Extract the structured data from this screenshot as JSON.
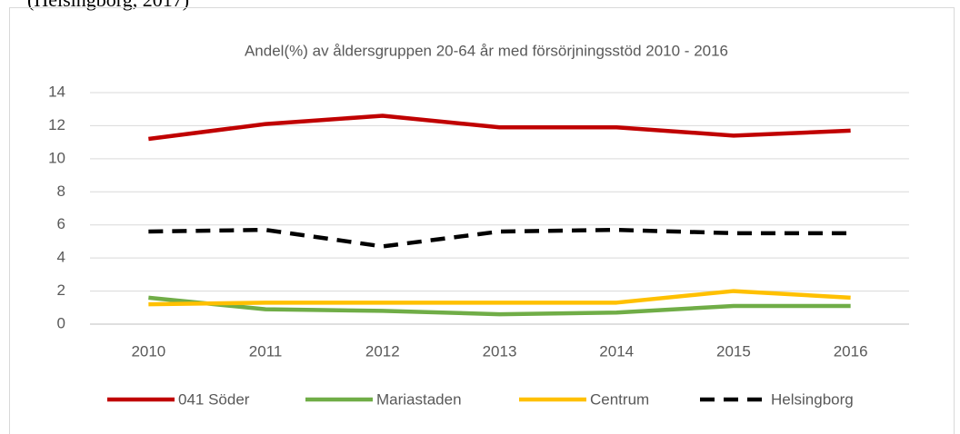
{
  "caption": "(Helsingborg, 2017)",
  "chart_data": {
    "type": "line",
    "title": "Andel(%) av åldersgruppen 20-64 år med försörjningsstöd 2010 - 2016",
    "categories": [
      "2010",
      "2011",
      "2012",
      "2013",
      "2014",
      "2015",
      "2016"
    ],
    "series": [
      {
        "name": "041 Söder",
        "color": "#c00000",
        "dashed": false,
        "values": [
          11.2,
          12.1,
          12.6,
          11.9,
          11.9,
          11.4,
          11.7
        ]
      },
      {
        "name": "Mariastaden",
        "color": "#70ad47",
        "dashed": false,
        "values": [
          1.6,
          0.9,
          0.8,
          0.6,
          0.7,
          1.1,
          1.1
        ]
      },
      {
        "name": "Centrum",
        "color": "#ffc000",
        "dashed": false,
        "values": [
          1.2,
          1.3,
          1.3,
          1.3,
          1.3,
          2.0,
          1.6
        ]
      },
      {
        "name": "Helsingborg",
        "color": "#000000",
        "dashed": true,
        "values": [
          5.6,
          5.7,
          4.7,
          5.6,
          5.7,
          5.5,
          5.5
        ]
      }
    ],
    "ylim": [
      0,
      14
    ],
    "yticks": [
      0,
      2,
      4,
      6,
      8,
      10,
      12,
      14
    ],
    "grid": true,
    "legend": "bottom"
  }
}
